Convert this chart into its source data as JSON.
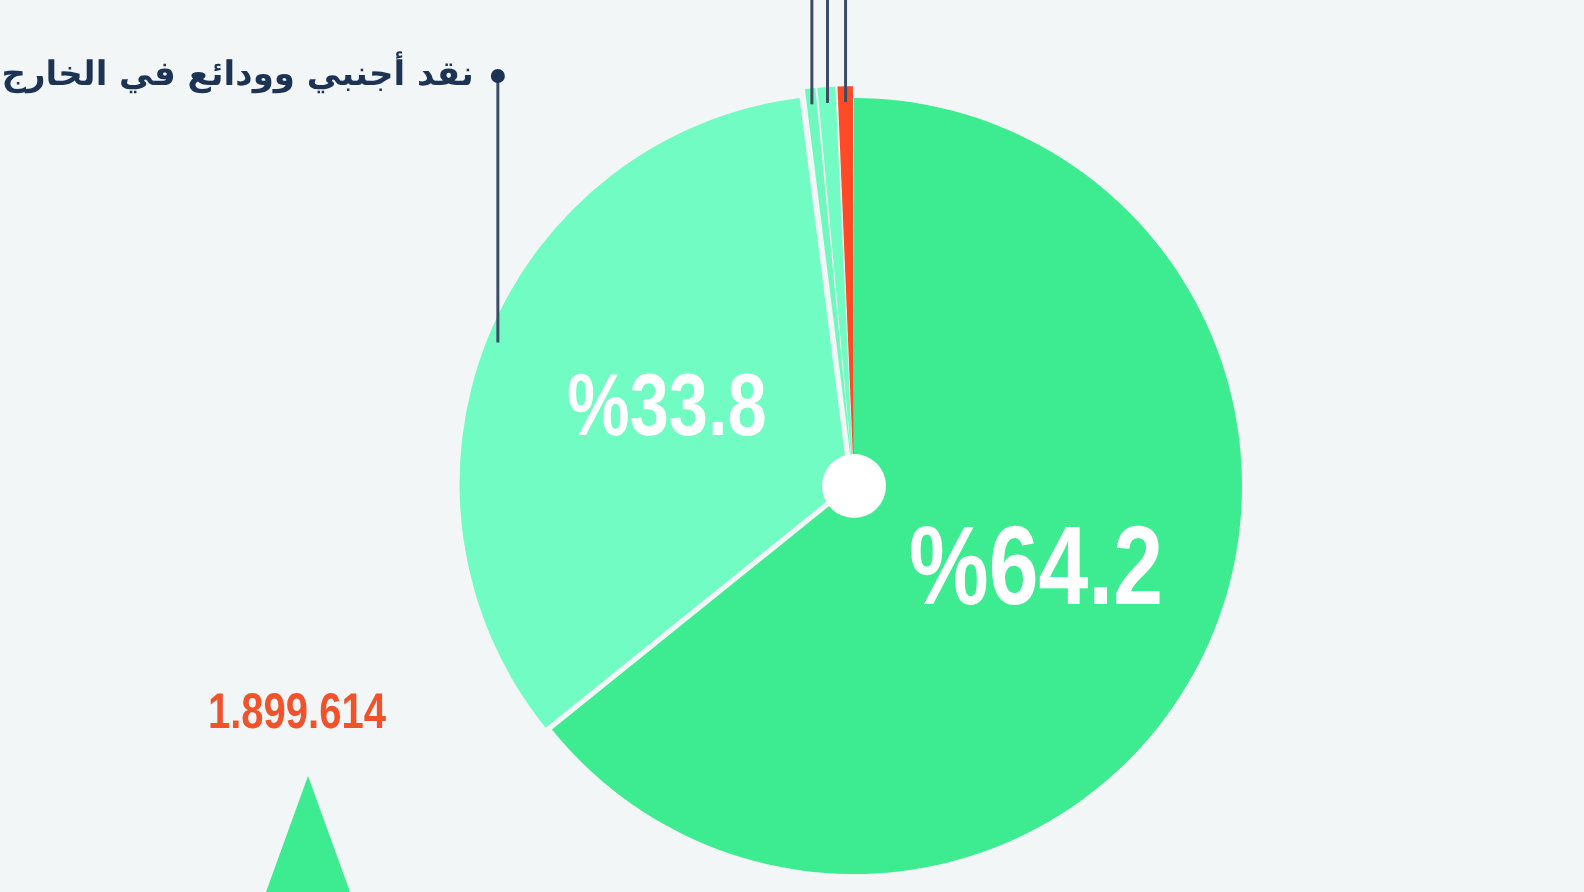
{
  "chart_data": {
    "type": "pie",
    "categories": [
      null,
      "نقد أجنبي وودائع في الخارج",
      null,
      null,
      null
    ],
    "values": [
      64.2,
      33.8,
      0.5,
      0.8,
      0.7
    ],
    "colors": [
      "#3dec90",
      "#70fcc3",
      "#6ef8be",
      "#72fbc2",
      "#ff4a26"
    ],
    "value_labels": [
      "%64.2",
      "%33.8",
      null,
      null,
      null
    ],
    "annotations": [
      "1.899.614"
    ]
  }
}
